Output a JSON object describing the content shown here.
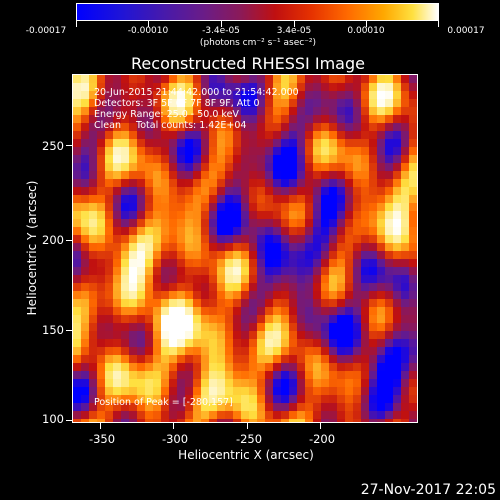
{
  "colorbar": {
    "ticks": [
      "-0.00017",
      "-0.00010",
      "-3.4e-05",
      "3.4e-05",
      "0.00010",
      "0.00017"
    ],
    "units": "(photons cm⁻² s⁻¹ asec⁻²)",
    "range": [
      -0.00017,
      0.00017
    ],
    "colors": [
      "#0000ff",
      "#6a1c88",
      "#c01010",
      "#ff6a00",
      "#ffe040",
      "#ffffff"
    ]
  },
  "title": "Reconstructed RHESSI Image",
  "overlay": {
    "time_range": "20-Jun-2015 21:44:42.000 to 21:54:42.000",
    "detectors": "Detectors: 3F 5F 6F 7F 8F 9F, Att 0",
    "energy_range": "Energy Range: 25.0 - 50.0 keV",
    "clean": "Clean     Total counts: 1.42E+04",
    "peak": "Position of Peak = [-280,157]"
  },
  "axes": {
    "xlabel": "Heliocentric X (arcsec)",
    "ylabel": "Heliocentric Y (arcsec)",
    "xticks": [
      "-350",
      "-300",
      "-250",
      "-200"
    ],
    "yticks": [
      "250",
      "200",
      "150",
      "100"
    ]
  },
  "footer": {
    "date": "27-Nov-2017 22:05"
  }
}
